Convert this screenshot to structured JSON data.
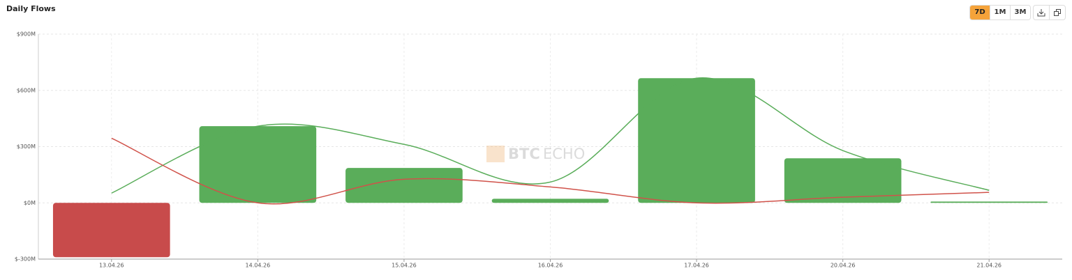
{
  "chart_data": {
    "type": "bar",
    "title": "Daily Flows",
    "controls": {
      "ranges": [
        "7D",
        "1M",
        "3M"
      ],
      "active": 0
    },
    "watermark": [
      "BTC",
      "ECHO"
    ],
    "categories": [
      "13.04.26",
      "14.04.26",
      "15.04.26",
      "16.04.26",
      "17.04.26",
      "20.04.26",
      "21.04.26"
    ],
    "series": [
      {
        "type": "bar",
        "color": "#5aad5a",
        "negative_color": "#c84b4b",
        "values": [
          -290,
          409,
          186,
          22,
          665,
          238,
          7
        ]
      },
      {
        "type": "line",
        "color": "#5aad5a",
        "values": [
          52,
          409,
          312,
          111,
          665,
          279,
          67
        ]
      },
      {
        "type": "line",
        "color": "#d0524a",
        "values": [
          345,
          0,
          126,
          85,
          0,
          30,
          56
        ]
      }
    ],
    "ylim": [
      -300,
      900
    ],
    "yticks": [
      {
        "value": -300,
        "label": "$-300M"
      },
      {
        "value": 0,
        "label": "$0M"
      },
      {
        "value": 300,
        "label": "$300M"
      },
      {
        "value": 600,
        "label": "$600M"
      },
      {
        "value": 900,
        "label": "$900M"
      }
    ],
    "grid": true
  }
}
